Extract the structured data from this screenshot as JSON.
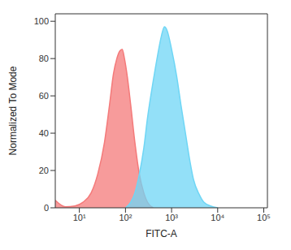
{
  "chart_data": {
    "type": "area",
    "x_label": "FITC-A",
    "y_label": "Normalized To Mode",
    "log": "x",
    "xlim": [
      3,
      120000
    ],
    "xticks": [
      {
        "value": 10,
        "label": "10¹"
      },
      {
        "value": 100,
        "label": "10²"
      },
      {
        "value": 1000,
        "label": "10³"
      },
      {
        "value": 10000,
        "label": "10⁴"
      },
      {
        "value": 100000,
        "label": "10⁵"
      }
    ],
    "ylim": [
      0,
      104
    ],
    "yticks": [
      0,
      20,
      40,
      60,
      80,
      100
    ],
    "grid": false,
    "series": [
      {
        "color": "#f47a7a",
        "x": [
          3,
          5,
          8,
          12,
          18,
          25,
          35,
          45,
          55,
          65,
          75,
          85,
          95,
          110,
          130,
          160,
          200,
          250,
          300,
          400
        ],
        "values": [
          4,
          0.5,
          1,
          3,
          8,
          18,
          35,
          55,
          72,
          80,
          84,
          85,
          80,
          70,
          55,
          35,
          18,
          8,
          3,
          0
        ]
      },
      {
        "color": "#6fd6f5",
        "x": [
          100,
          130,
          160,
          200,
          250,
          300,
          400,
          500,
          600,
          700,
          800,
          1000,
          1300,
          1600,
          2000,
          2500,
          3000,
          4000,
          5000,
          7000,
          10000
        ],
        "values": [
          0,
          3,
          8,
          18,
          32,
          48,
          68,
          82,
          92,
          97,
          95,
          85,
          70,
          55,
          40,
          25,
          15,
          7,
          3,
          1,
          0
        ]
      }
    ]
  }
}
